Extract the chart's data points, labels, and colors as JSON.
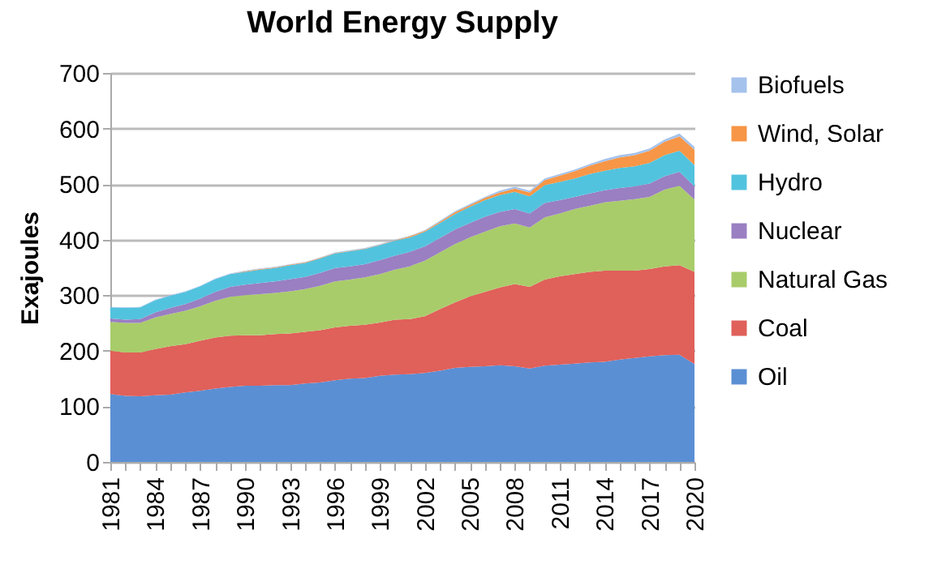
{
  "chart_data": {
    "type": "area",
    "stacked": true,
    "title": "World Energy Supply",
    "ylabel": "Exajoules",
    "categories": [
      "1981",
      null,
      null,
      "1984",
      null,
      null,
      "1987",
      null,
      null,
      "1990",
      null,
      null,
      "1993",
      null,
      null,
      "1996",
      null,
      null,
      "1999",
      null,
      null,
      "2002",
      null,
      null,
      "2005",
      null,
      null,
      "2008",
      null,
      null,
      "2011",
      null,
      null,
      "2014",
      null,
      null,
      "2017",
      null,
      null,
      "2020"
    ],
    "series": [
      {
        "name": "Oil",
        "color": "#5b8fd4",
        "values": [
          122,
          119,
          118,
          120,
          121,
          125,
          128,
          132,
          135,
          137,
          137,
          138,
          138,
          141,
          143,
          147,
          150,
          151,
          155,
          157,
          158,
          160,
          164,
          169,
          171,
          172,
          174,
          172,
          168,
          173,
          175,
          177,
          179,
          180,
          184,
          187,
          190,
          192,
          193,
          176
        ]
      },
      {
        "name": "Coal",
        "color": "#e0605a",
        "values": [
          78,
          78,
          79,
          83,
          87,
          87,
          90,
          92,
          92,
          91,
          91,
          92,
          93,
          93,
          94,
          95,
          95,
          96,
          96,
          99,
          99,
          102,
          111,
          118,
          127,
          134,
          140,
          148,
          147,
          155,
          159,
          161,
          163,
          164,
          160,
          157,
          157,
          160,
          161,
          166
        ]
      },
      {
        "name": "Natural Gas",
        "color": "#a9cc6a",
        "values": [
          52,
          53,
          53,
          57,
          58,
          60,
          62,
          66,
          70,
          72,
          74,
          74,
          76,
          77,
          80,
          83,
          83,
          85,
          87,
          90,
          95,
          100,
          102,
          105,
          106,
          108,
          110,
          109,
          107,
          112,
          113,
          117,
          119,
          123,
          126,
          129,
          130,
          138,
          143,
          130
        ]
      },
      {
        "name": "Nuclear",
        "color": "#9a7fc2",
        "values": [
          6,
          6,
          7,
          9,
          11,
          12,
          14,
          16,
          18,
          19,
          20,
          21,
          22,
          22,
          23,
          24,
          24,
          24,
          25,
          25,
          26,
          26,
          26,
          26,
          26,
          27,
          26,
          26,
          25,
          26,
          24,
          22,
          22,
          22,
          23,
          23,
          24,
          24,
          25,
          24
        ]
      },
      {
        "name": "Hydro",
        "color": "#52c3de",
        "values": [
          20,
          21,
          21,
          22,
          22,
          22,
          22,
          23,
          23,
          23,
          24,
          24,
          25,
          25,
          26,
          26,
          27,
          27,
          27,
          27,
          26,
          26,
          27,
          28,
          29,
          30,
          30,
          31,
          31,
          32,
          33,
          33,
          35,
          35,
          36,
          36,
          37,
          38,
          38,
          38
        ]
      },
      {
        "name": "Wind, Solar",
        "color": "#f79646",
        "values": [
          0,
          0,
          0,
          0,
          0,
          0,
          0,
          0,
          0,
          1,
          1,
          1,
          1,
          1,
          1,
          1,
          1,
          1,
          1,
          1,
          2,
          2,
          2,
          3,
          3,
          4,
          5,
          6,
          7,
          9,
          11,
          13,
          15,
          17,
          19,
          20,
          22,
          24,
          26,
          28
        ]
      },
      {
        "name": "Biofuels",
        "color": "#a4c2ec",
        "values": [
          1,
          1,
          1,
          1,
          1,
          1,
          1,
          1,
          1,
          1,
          1,
          1,
          1,
          1,
          1,
          1,
          1,
          1,
          1,
          1,
          1,
          1,
          2,
          2,
          2,
          2,
          3,
          3,
          3,
          3,
          3,
          3,
          3,
          4,
          4,
          4,
          4,
          4,
          5,
          5
        ]
      }
    ],
    "ylim": [
      0,
      700
    ],
    "yticks": [
      0,
      100,
      200,
      300,
      400,
      500,
      600,
      700
    ],
    "grid": "y",
    "legend": "right"
  }
}
